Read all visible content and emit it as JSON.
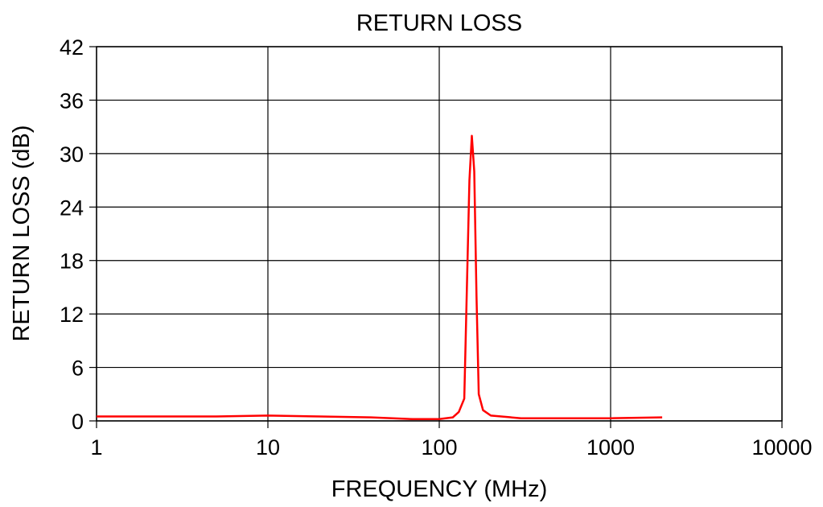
{
  "chart_data": {
    "type": "line",
    "title": "RETURN LOSS",
    "xlabel": "FREQUENCY (MHz)",
    "ylabel": "RETURN LOSS (dB)",
    "x_scale": "log",
    "xlim": [
      1,
      10000
    ],
    "ylim": [
      0,
      42
    ],
    "x_ticks": [
      "1",
      "10",
      "100",
      "1000",
      "10000"
    ],
    "y_ticks": [
      "0",
      "6",
      "12",
      "18",
      "24",
      "30",
      "36",
      "42"
    ],
    "grid": true,
    "line_color": "#ff0000",
    "series": [
      {
        "x": [
          1,
          2,
          5,
          10,
          20,
          40,
          70,
          100,
          120,
          130,
          140,
          150,
          155,
          160,
          165,
          170,
          180,
          200,
          300,
          500,
          1000,
          2000
        ],
        "y": [
          0.5,
          0.5,
          0.5,
          0.6,
          0.5,
          0.4,
          0.2,
          0.2,
          0.4,
          1.0,
          2.5,
          27,
          32,
          28,
          14,
          3,
          1.2,
          0.6,
          0.3,
          0.3,
          0.3,
          0.4
        ]
      }
    ]
  }
}
